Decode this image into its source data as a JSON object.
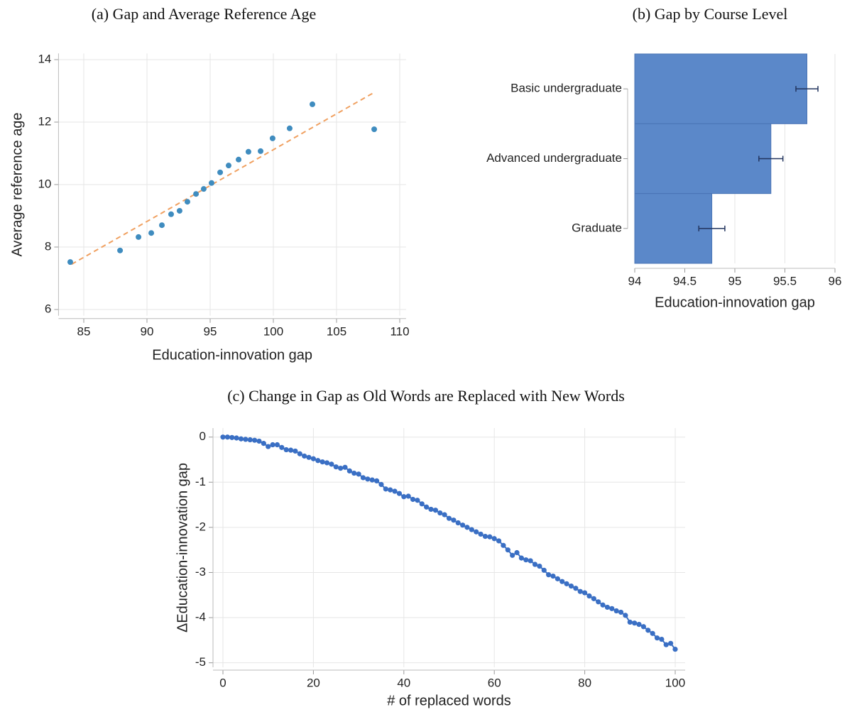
{
  "chart_data": [
    {
      "type": "scatter",
      "title": "(a) Gap and Average Reference Age",
      "x_label": "Education-innovation gap",
      "y_label": "Average reference age",
      "points": {
        "color": "#3f8cbf",
        "x": [
          83.93,
          87.87,
          89.33,
          90.34,
          91.18,
          91.91,
          92.58,
          93.2,
          93.88,
          94.49,
          95.11,
          95.79,
          96.46,
          97.25,
          98.03,
          98.99,
          99.94,
          101.29,
          103.09,
          107.98
        ],
        "values": [
          7.52,
          7.89,
          8.32,
          8.45,
          8.7,
          9.05,
          9.16,
          9.45,
          9.7,
          9.86,
          10.05,
          10.39,
          10.61,
          10.8,
          11.05,
          11.07,
          11.48,
          11.8,
          12.57,
          11.77
        ]
      },
      "fit_line": {
        "color": "#f0a060",
        "dashed": true,
        "x": [
          84.04,
          107.98
        ],
        "values": [
          7.45,
          12.95
        ]
      },
      "xlim": [
        83,
        110.5
      ],
      "xticks": [
        85,
        90,
        95,
        100,
        105,
        110
      ],
      "ylim": [
        5.8,
        14.2
      ],
      "yticks": [
        6,
        8,
        10,
        12,
        14
      ],
      "grid": true
    },
    {
      "type": "bar",
      "orientation": "horizontal",
      "title": "(b) Gap by Course Level",
      "x_label": "Education-innovation gap",
      "categories": [
        "Basic undergraduate",
        "Advanced undergraduate",
        "Graduate"
      ],
      "values": [
        95.72,
        95.36,
        94.77
      ],
      "errors": [
        0.11,
        0.12,
        0.13
      ],
      "color": "#5b88c9",
      "error_color": "#22345e",
      "xlim": [
        94,
        96
      ],
      "xticks": [
        94,
        94.5,
        95,
        95.5,
        96
      ],
      "grid": true
    },
    {
      "type": "line",
      "markers": true,
      "title": "(c) Change in Gap as Old Words are Replaced with New Words",
      "x_label": "# of replaced words",
      "y_label": "ΔEducation-innovation gap",
      "color": "#3a6fc4",
      "x": [
        0,
        1,
        2,
        3,
        4,
        5,
        6,
        7,
        8,
        9,
        10,
        11,
        12,
        13,
        14,
        15,
        16,
        17,
        18,
        19,
        20,
        21,
        22,
        23,
        24,
        25,
        26,
        27,
        28,
        29,
        30,
        31,
        32,
        33,
        34,
        35,
        36,
        37,
        38,
        39,
        40,
        41,
        42,
        43,
        44,
        45,
        46,
        47,
        48,
        49,
        50,
        51,
        52,
        53,
        54,
        55,
        56,
        57,
        58,
        59,
        60,
        61,
        62,
        63,
        64,
        65,
        66,
        67,
        68,
        69,
        70,
        71,
        72,
        73,
        74,
        75,
        76,
        77,
        78,
        79,
        80,
        81,
        82,
        83,
        84,
        85,
        86,
        87,
        88,
        89,
        90,
        91,
        92,
        93,
        94,
        95,
        96,
        97,
        98,
        99,
        100
      ],
      "values": [
        0,
        0,
        -0.01,
        -0.02,
        -0.04,
        -0.05,
        -0.06,
        -0.07,
        -0.09,
        -0.14,
        -0.21,
        -0.17,
        -0.17,
        -0.23,
        -0.28,
        -0.29,
        -0.31,
        -0.37,
        -0.42,
        -0.45,
        -0.48,
        -0.52,
        -0.55,
        -0.57,
        -0.6,
        -0.66,
        -0.69,
        -0.67,
        -0.75,
        -0.8,
        -0.82,
        -0.9,
        -0.93,
        -0.95,
        -0.97,
        -1.05,
        -1.15,
        -1.17,
        -1.2,
        -1.25,
        -1.32,
        -1.31,
        -1.38,
        -1.4,
        -1.48,
        -1.55,
        -1.6,
        -1.62,
        -1.68,
        -1.72,
        -1.8,
        -1.84,
        -1.9,
        -1.95,
        -2.0,
        -2.05,
        -2.1,
        -2.15,
        -2.2,
        -2.21,
        -2.25,
        -2.3,
        -2.4,
        -2.5,
        -2.62,
        -2.56,
        -2.68,
        -2.72,
        -2.74,
        -2.82,
        -2.86,
        -2.95,
        -3.05,
        -3.08,
        -3.14,
        -3.2,
        -3.25,
        -3.3,
        -3.35,
        -3.42,
        -3.45,
        -3.52,
        -3.58,
        -3.65,
        -3.72,
        -3.77,
        -3.8,
        -3.85,
        -3.88,
        -3.95,
        -4.1,
        -4.12,
        -4.15,
        -4.2,
        -4.28,
        -4.35,
        -4.45,
        -4.48,
        -4.6,
        -4.57,
        -4.7
      ],
      "xlim": [
        -2.2,
        102.2
      ],
      "xticks": [
        0,
        20,
        40,
        60,
        80,
        100
      ],
      "ylim": [
        -5.1,
        0.2
      ],
      "yticks": [
        -5,
        -4,
        -3,
        -2,
        -1,
        0
      ],
      "grid": true
    }
  ]
}
